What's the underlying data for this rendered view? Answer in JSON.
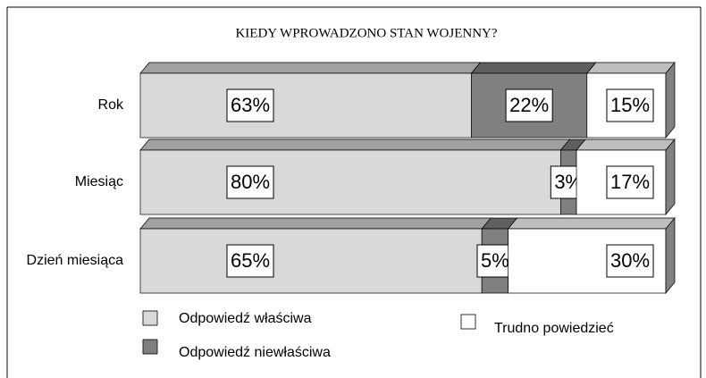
{
  "chart_data": {
    "type": "stacked-bar-3d",
    "title": "KIEDY WPROWADZONO STAN WOJENNY?",
    "categories": [
      "Rok",
      "Miesiąc",
      "Dzień miesiąca"
    ],
    "series": [
      {
        "name": "Odpowiedź właściwa",
        "color": "#d9d9d9",
        "values": [
          63,
          80,
          65
        ],
        "value_labels": [
          "63%",
          "80%",
          "65%"
        ]
      },
      {
        "name": "Odpowiedź niewłaściwa",
        "color": "#808080",
        "values": [
          22,
          3,
          5
        ],
        "value_labels": [
          "22%",
          "3%",
          "5%"
        ]
      },
      {
        "name": "Trudno powiedzieć",
        "color": "#ffffff",
        "values": [
          15,
          17,
          30
        ],
        "value_labels": [
          "15%",
          "17%",
          "30%"
        ]
      }
    ]
  }
}
